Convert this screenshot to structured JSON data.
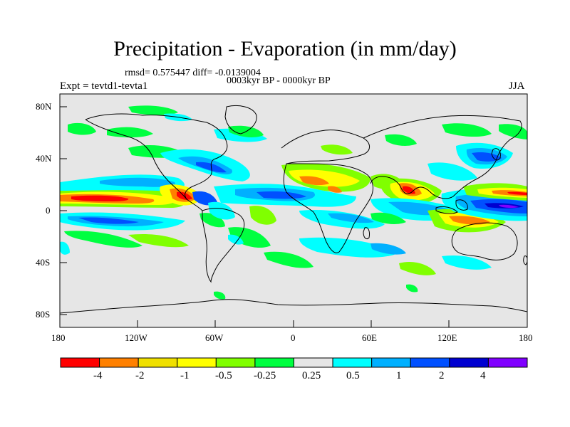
{
  "title": "Precipitation - Evaporation (in mm/day)",
  "stats_line": "rmsd= 0.575447 diff= -0.0139004",
  "period_line": "0003kyr BP - 0000kyr BP",
  "experiment": "Expt = tevtd1-tevta1",
  "season": "JJA",
  "lat_labels": [
    "80N",
    "40N",
    "0",
    "40S",
    "80S"
  ],
  "lon_labels": [
    "180",
    "120W",
    "60W",
    "0",
    "60E",
    "120E",
    "180"
  ],
  "colorbar": {
    "labels": [
      "-4",
      "-2",
      "-1",
      "-0.5",
      "-0.25",
      "0.25",
      "0.5",
      "1",
      "2",
      "4"
    ],
    "colors": [
      "#ff0000",
      "#ff8000",
      "#f0e000",
      "#ffff00",
      "#80ff00",
      "#00ff40",
      "#e6e6e6",
      "#00ffff",
      "#00b0ff",
      "#0050ff",
      "#0000d0",
      "#8000ff"
    ]
  },
  "colors": {
    "ocean_land_background": "#e6e6e6",
    "coastline": "#000000"
  }
}
